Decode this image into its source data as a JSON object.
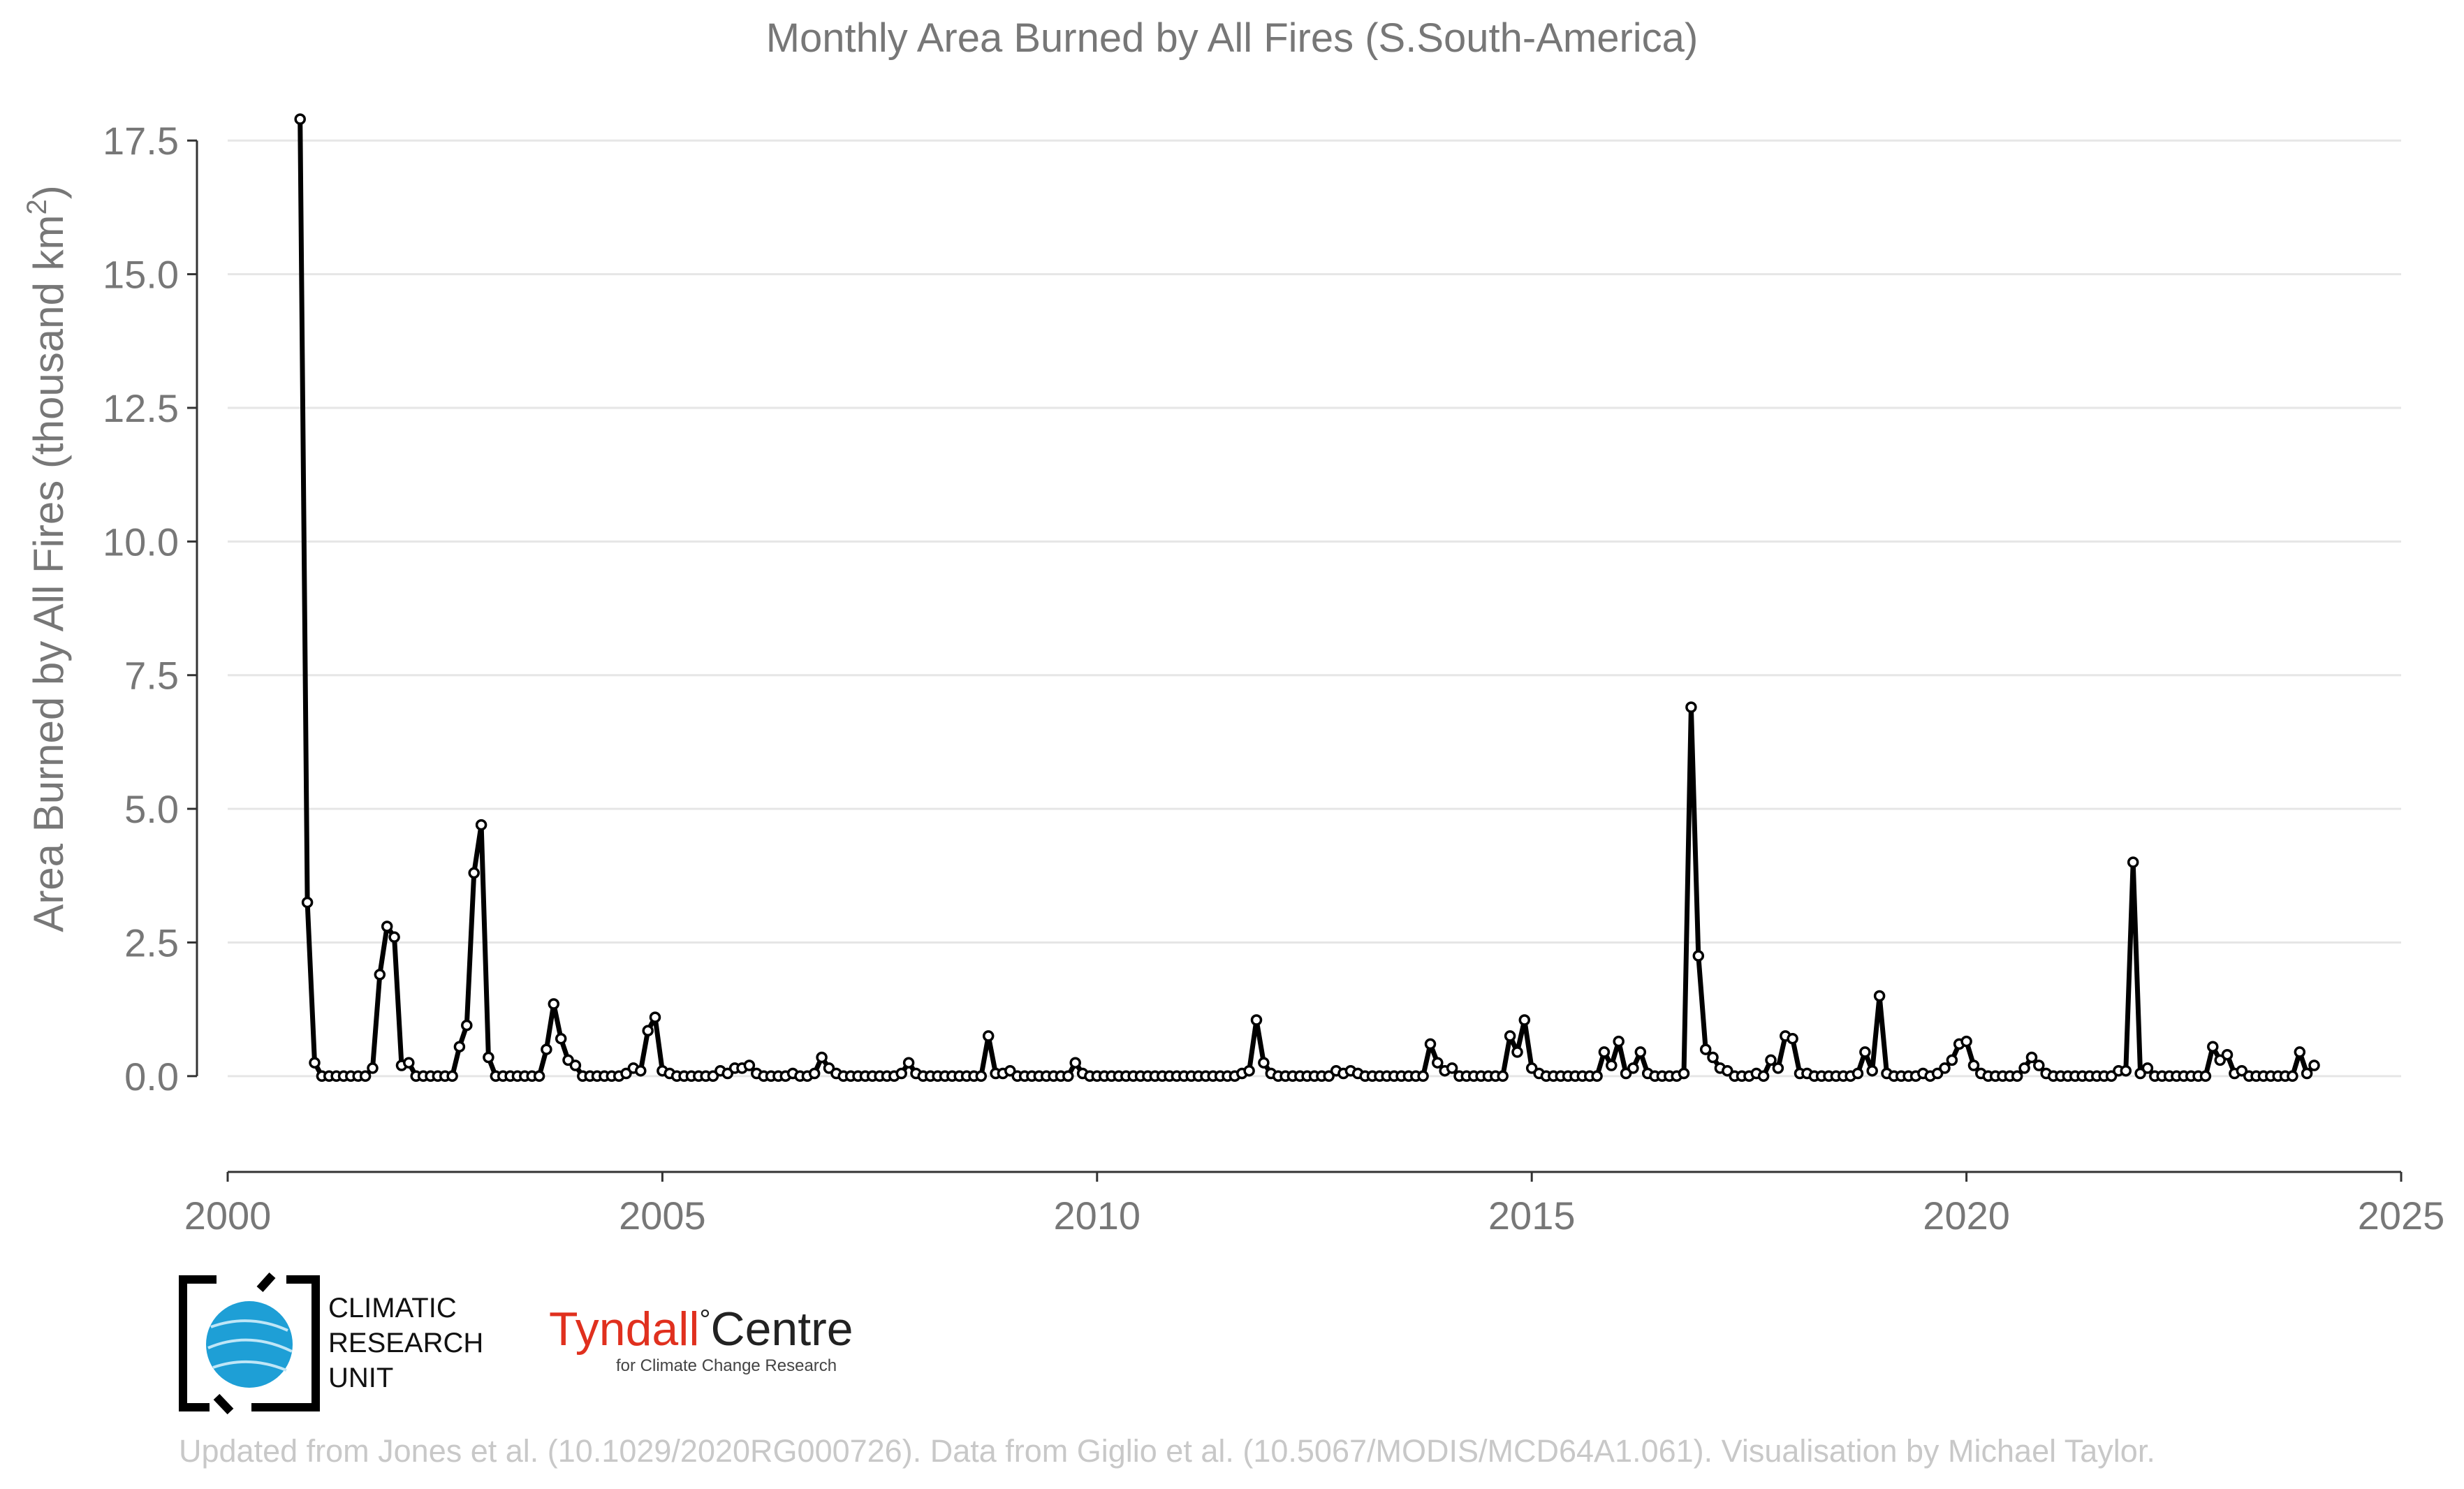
{
  "chart_data": {
    "type": "line",
    "title": "Monthly Area Burned by All Fires (S.South-America)",
    "ylabel": "Area Burned by All Fires (thousand km²)",
    "ylabel_main": "Area Burned by All Fires (thousand km",
    "ylabel_sup": "2",
    "ylabel_end": ")",
    "xlabel": "",
    "xlim": [
      2000,
      2025
    ],
    "ylim": [
      -1.4,
      18.3
    ],
    "x_ticks": [
      2000,
      2005,
      2010,
      2015,
      2020,
      2025
    ],
    "x_tick_labels": [
      "2000",
      "2005",
      "2010",
      "2015",
      "2020",
      "2025"
    ],
    "y_ticks": [
      0,
      2.5,
      5,
      7.5,
      10,
      12.5,
      15,
      17.5
    ],
    "y_tick_labels": [
      "0.0",
      "2.5",
      "5.0",
      "7.5",
      "10.0",
      "12.5",
      "15.0",
      "17.5"
    ],
    "grid": "horizontal",
    "legend": "none",
    "line_color": "#000000",
    "marker_fill": "#ffffff",
    "x_start": "2000-11",
    "x_step": "1 month",
    "values": [
      17.9,
      3.25,
      0.25,
      0.0,
      0.0,
      0.0,
      0.0,
      0.0,
      0.0,
      0.0,
      0.15,
      1.9,
      2.8,
      2.6,
      0.2,
      0.25,
      0.0,
      0.0,
      0.0,
      0.0,
      0.0,
      0.0,
      0.55,
      0.95,
      3.8,
      4.7,
      0.35,
      0.0,
      0.0,
      0.0,
      0.0,
      0.0,
      0.0,
      0.0,
      0.5,
      1.35,
      0.7,
      0.3,
      0.2,
      0.0,
      0.0,
      0.0,
      0.0,
      0.0,
      0.0,
      0.05,
      0.15,
      0.1,
      0.85,
      1.1,
      0.1,
      0.05,
      0.0,
      0.0,
      0.0,
      0.0,
      0.0,
      0.0,
      0.1,
      0.05,
      0.15,
      0.15,
      0.2,
      0.05,
      0.0,
      0.0,
      0.0,
      0.0,
      0.05,
      0.0,
      0.0,
      0.05,
      0.35,
      0.15,
      0.05,
      0.0,
      0.0,
      0.0,
      0.0,
      0.0,
      0.0,
      0.0,
      0.0,
      0.05,
      0.25,
      0.05,
      0.0,
      0.0,
      0.0,
      0.0,
      0.0,
      0.0,
      0.0,
      0.0,
      0.0,
      0.75,
      0.05,
      0.05,
      0.1,
      0.0,
      0.0,
      0.0,
      0.0,
      0.0,
      0.0,
      0.0,
      0.0,
      0.25,
      0.05,
      0.0,
      0.0,
      0.0,
      0.0,
      0.0,
      0.0,
      0.0,
      0.0,
      0.0,
      0.0,
      0.0,
      0.0,
      0.0,
      0.0,
      0.0,
      0.0,
      0.0,
      0.0,
      0.0,
      0.0,
      0.0,
      0.05,
      0.1,
      1.05,
      0.25,
      0.05,
      0.0,
      0.0,
      0.0,
      0.0,
      0.0,
      0.0,
      0.0,
      0.0,
      0.1,
      0.05,
      0.1,
      0.05,
      0.0,
      0.0,
      0.0,
      0.0,
      0.0,
      0.0,
      0.0,
      0.0,
      0.0,
      0.6,
      0.25,
      0.1,
      0.15,
      0.0,
      0.0,
      0.0,
      0.0,
      0.0,
      0.0,
      0.0,
      0.75,
      0.45,
      1.05,
      0.15,
      0.05,
      0.0,
      0.0,
      0.0,
      0.0,
      0.0,
      0.0,
      0.0,
      0.0,
      0.45,
      0.2,
      0.65,
      0.05,
      0.15,
      0.45,
      0.05,
      0.0,
      0.0,
      0.0,
      0.0,
      0.05,
      6.9,
      2.25,
      0.5,
      0.35,
      0.15,
      0.1,
      0.0,
      0.0,
      0.0,
      0.05,
      0.0,
      0.3,
      0.15,
      0.75,
      0.7,
      0.05,
      0.05,
      0.0,
      0.0,
      0.0,
      0.0,
      0.0,
      0.0,
      0.05,
      0.45,
      0.1,
      1.5,
      0.05,
      0.0,
      0.0,
      0.0,
      0.0,
      0.05,
      0.0,
      0.05,
      0.15,
      0.3,
      0.6,
      0.65,
      0.2,
      0.05,
      0.0,
      0.0,
      0.0,
      0.0,
      0.0,
      0.15,
      0.35,
      0.2,
      0.05,
      0.0,
      0.0,
      0.0,
      0.0,
      0.0,
      0.0,
      0.0,
      0.0,
      0.0,
      0.1,
      0.1,
      4.0,
      0.05,
      0.15,
      0.0,
      0.0,
      0.0,
      0.0,
      0.0,
      0.0,
      0.0,
      0.0,
      0.55,
      0.3,
      0.4,
      0.05,
      0.1,
      0.0,
      0.0,
      0.0,
      0.0,
      0.0,
      0.0,
      0.0,
      0.45,
      0.05,
      0.2
    ]
  },
  "logos": {
    "cru_line1": "CLIMATIC",
    "cru_line2": "RESEARCH",
    "cru_line3": "UNIT",
    "tyndall_red": "Tyndall",
    "tyndall_deg": "°",
    "tyndall_black": "Centre",
    "tyndall_sub": "for Climate Change Research"
  },
  "credit": "Updated from Jones et al. (10.1029/2020RG000726). Data from Giglio et al. (10.5067/MODIS/MCD64A1.061). Visualisation by Michael Taylor.",
  "colors": {
    "text_gray": "#777777",
    "grid": "#e6e6e6",
    "credit": "#c8c8c8",
    "cru_blue": "#1e9fd6",
    "tyndall_red": "#e0301e"
  }
}
